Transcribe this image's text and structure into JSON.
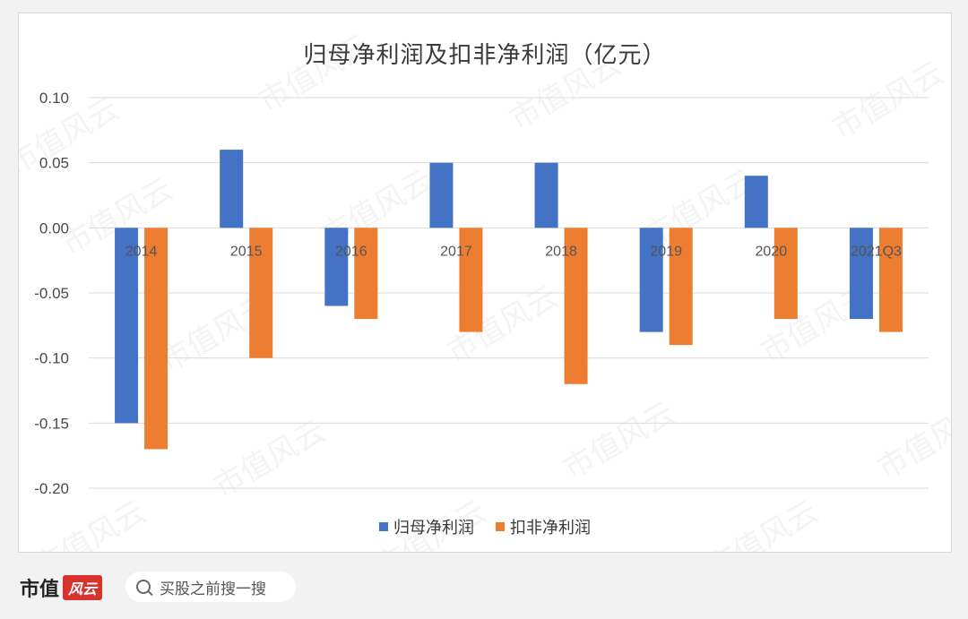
{
  "chart_data": {
    "type": "bar",
    "title": "归母净利润及扣非净利润（亿元）",
    "categories": [
      "2014",
      "2015",
      "2016",
      "2017",
      "2018",
      "2019",
      "2020",
      "2021Q3"
    ],
    "series": [
      {
        "name": "归母净利润",
        "color": "#4472c4",
        "values": [
          -0.15,
          0.06,
          -0.06,
          0.05,
          0.05,
          -0.08,
          0.04,
          -0.07
        ]
      },
      {
        "name": "扣非净利润",
        "color": "#ed7d31",
        "values": [
          -0.17,
          -0.1,
          -0.07,
          -0.08,
          -0.12,
          -0.09,
          -0.07,
          -0.08
        ]
      }
    ],
    "ylim": [
      -0.2,
      0.1
    ],
    "yticks": [
      "0.10",
      "0.05",
      "0.00",
      "-0.05",
      "-0.10",
      "-0.15",
      "-0.20"
    ],
    "xlabel": "",
    "ylabel": "",
    "grid": true,
    "legend": "bottom"
  },
  "watermark": "市值风云",
  "footer": {
    "logo_text": "市值",
    "logo_badge": "风云",
    "search_placeholder": "买股之前搜一搜"
  }
}
